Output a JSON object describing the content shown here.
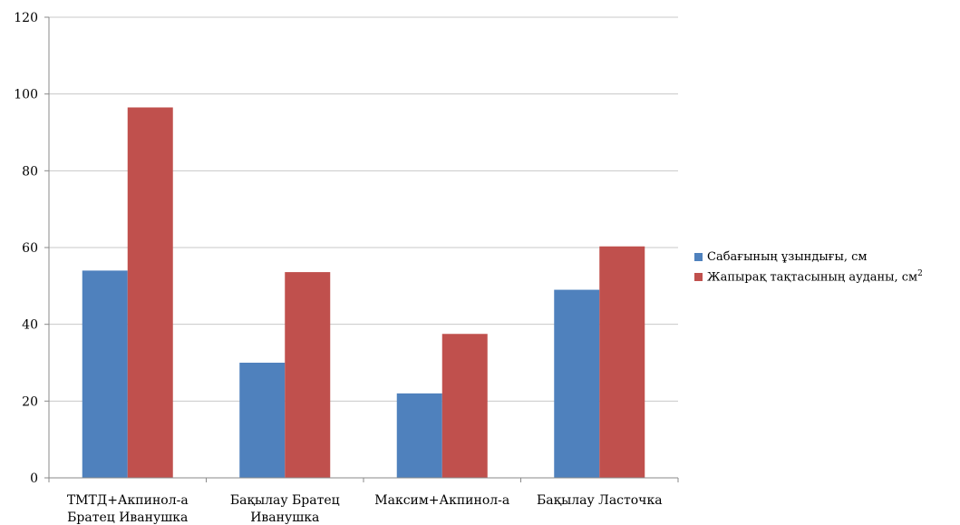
{
  "chart_data": {
    "type": "bar",
    "categories": [
      [
        "ТМТД+Акпинол-а",
        "Братец Иванушка"
      ],
      [
        "Бақылау Братец",
        "Иванушка"
      ],
      [
        "Максим+Акпинол-а"
      ],
      [
        "Бақылау Ласточка"
      ]
    ],
    "series": [
      {
        "name": "Сабағының ұзындығы, см",
        "color": "#4f81bd",
        "values": [
          54,
          30,
          22,
          49
        ]
      },
      {
        "name": "Жапырақ тақтасының ауданы, см",
        "name_superscript": "2",
        "color": "#c0504d",
        "values": [
          96.5,
          53.6,
          37.5,
          60.3
        ]
      }
    ],
    "yticks": [
      "0",
      "20",
      "40",
      "60",
      "80",
      "100",
      "120"
    ],
    "ylim": [
      0,
      120
    ],
    "grid": true,
    "legend_position": "right",
    "title": "",
    "xlabel": "",
    "ylabel": ""
  }
}
